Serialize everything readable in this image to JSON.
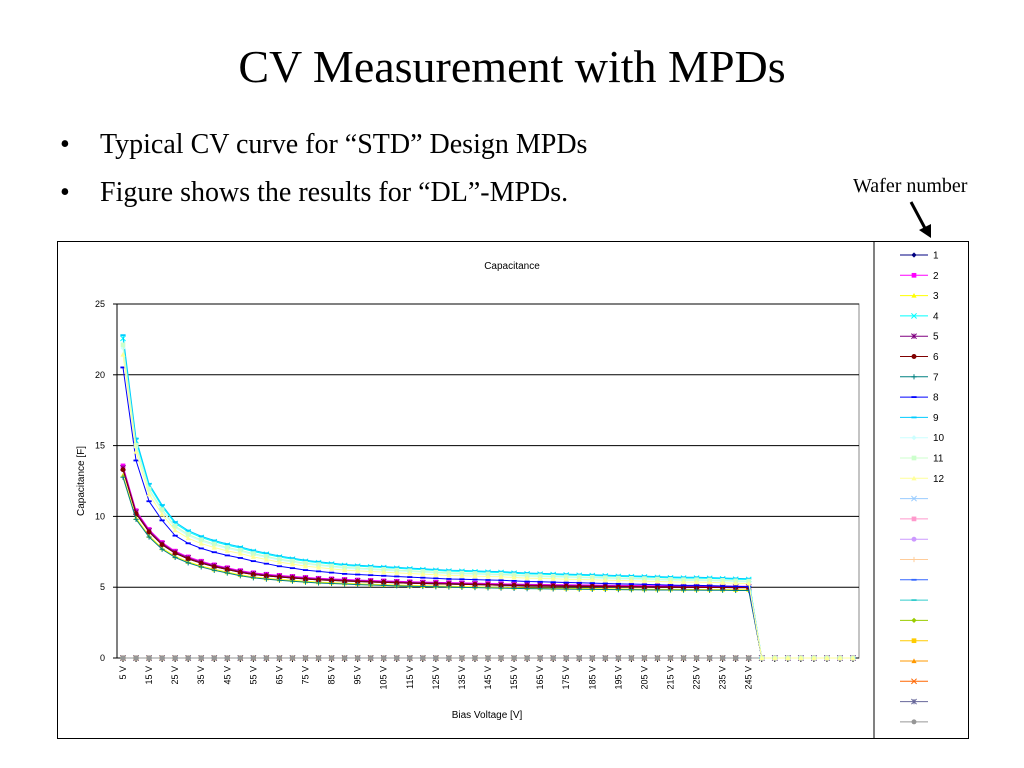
{
  "slide": {
    "title": "CV Measurement with MPDs",
    "bullets": [
      "Typical CV curve for “STD” Design MPDs",
      "Figure shows the results for “DL”-MPDs."
    ],
    "annotation": "Wafer number"
  },
  "chart_data": {
    "type": "line",
    "title": "Capacitance",
    "xlabel": "Bias Voltage [V]",
    "ylabel": "Capacitance [F]",
    "ylim": [
      0,
      25
    ],
    "yticks": [
      0,
      5,
      10,
      15,
      20,
      25
    ],
    "grid": "horizontal",
    "legend_position": "right",
    "x": [
      5,
      10,
      15,
      20,
      25,
      30,
      35,
      40,
      45,
      50,
      55,
      60,
      65,
      70,
      75,
      80,
      85,
      90,
      95,
      100,
      105,
      110,
      115,
      120,
      125,
      130,
      135,
      140,
      145,
      150,
      155,
      160,
      165,
      170,
      175,
      180,
      185,
      190,
      195,
      200,
      205,
      210,
      215,
      220,
      225,
      230,
      235,
      240,
      245,
      250,
      255,
      260,
      265,
      270,
      275,
      280,
      285
    ],
    "x_tick_labels": [
      "5 V",
      "15 V",
      "25 V",
      "35 V",
      "45 V",
      "55 V",
      "65 V",
      "75 V",
      "85 V",
      "95 V",
      "105 V",
      "115 V",
      "125 V",
      "135 V",
      "145 V",
      "155 V",
      "165 V",
      "175 V",
      "185 V",
      "195 V",
      "205 V",
      "215 V",
      "225 V",
      "235 V",
      "245 V"
    ],
    "x_tick_values": [
      5,
      15,
      25,
      35,
      45,
      55,
      65,
      75,
      85,
      95,
      105,
      115,
      125,
      135,
      145,
      155,
      165,
      175,
      185,
      195,
      205,
      215,
      225,
      235,
      245
    ],
    "curve_profiles": {
      "high": [
        22.8,
        15.5,
        12.3,
        10.8,
        9.6,
        9.0,
        8.6,
        8.3,
        8.05,
        7.85,
        7.6,
        7.4,
        7.2,
        7.05,
        6.9,
        6.8,
        6.7,
        6.6,
        6.55,
        6.5,
        6.45,
        6.4,
        6.35,
        6.3,
        6.25,
        6.2,
        6.18,
        6.15,
        6.12,
        6.1,
        6.05,
        6.0,
        5.98,
        5.95,
        5.92,
        5.9,
        5.88,
        5.85,
        5.82,
        5.8,
        5.78,
        5.75,
        5.72,
        5.7,
        5.7,
        5.68,
        5.65,
        5.62,
        5.6,
        0,
        0,
        0,
        0,
        0,
        0,
        0,
        0
      ],
      "low": [
        13.3,
        10.2,
        8.9,
        8.0,
        7.4,
        7.0,
        6.7,
        6.45,
        6.25,
        6.05,
        5.9,
        5.8,
        5.72,
        5.65,
        5.58,
        5.52,
        5.48,
        5.44,
        5.4,
        5.37,
        5.34,
        5.31,
        5.28,
        5.26,
        5.24,
        5.22,
        5.2,
        5.18,
        5.16,
        5.14,
        5.12,
        5.1,
        5.09,
        5.08,
        5.07,
        5.06,
        5.05,
        5.04,
        5.03,
        5.02,
        5.01,
        5.0,
        5.0,
        4.99,
        4.99,
        4.98,
        4.98,
        4.97,
        4.97,
        0,
        0,
        0,
        0,
        0,
        0,
        0,
        0
      ],
      "zero": [
        0,
        0,
        0,
        0,
        0,
        0,
        0,
        0,
        0,
        0,
        0,
        0,
        0,
        0,
        0,
        0,
        0,
        0,
        0,
        0,
        0,
        0,
        0,
        0,
        0,
        0,
        0,
        0,
        0,
        0,
        0,
        0,
        0,
        0,
        0,
        0,
        0,
        0,
        0,
        0,
        0,
        0,
        0,
        0,
        0,
        0,
        0,
        0,
        0,
        0,
        0,
        0,
        0,
        0,
        0,
        0,
        0
      ]
    },
    "series": [
      {
        "name": "1",
        "color": "#000080",
        "marker": "diamond",
        "profile": "low",
        "scale": 1.0
      },
      {
        "name": "2",
        "color": "#ff00ff",
        "marker": "square",
        "profile": "low",
        "scale": 1.02
      },
      {
        "name": "3",
        "color": "#ffff00",
        "marker": "triangle",
        "profile": "low",
        "scale": 0.97
      },
      {
        "name": "4",
        "color": "#00ffff",
        "marker": "x",
        "profile": "high",
        "scale": 0.99
      },
      {
        "name": "5",
        "color": "#800080",
        "marker": "star",
        "profile": "low",
        "scale": 1.01
      },
      {
        "name": "6",
        "color": "#800000",
        "marker": "circle",
        "profile": "low",
        "scale": 1.0
      },
      {
        "name": "7",
        "color": "#008080",
        "marker": "plus",
        "profile": "low",
        "scale": 0.96
      },
      {
        "name": "8",
        "color": "#0000ff",
        "marker": "dash",
        "profile": "high",
        "scale": 0.9
      },
      {
        "name": "9",
        "color": "#00ccff",
        "marker": "dash",
        "profile": "high",
        "scale": 1.0
      },
      {
        "name": "10",
        "color": "#ccffff",
        "marker": "diamond",
        "profile": "high",
        "scale": 0.96
      },
      {
        "name": "11",
        "color": "#ccffcc",
        "marker": "square",
        "profile": "high",
        "scale": 0.97
      },
      {
        "name": "12",
        "color": "#ffff99",
        "marker": "triangle",
        "profile": "high",
        "scale": 0.94
      },
      {
        "name": "",
        "color": "#99ccff",
        "marker": "x",
        "profile": "zero",
        "scale": 1
      },
      {
        "name": "",
        "color": "#ff99cc",
        "marker": "square",
        "profile": "zero",
        "scale": 1
      },
      {
        "name": "",
        "color": "#cc99ff",
        "marker": "circle",
        "profile": "zero",
        "scale": 1
      },
      {
        "name": "",
        "color": "#ffcc99",
        "marker": "plus",
        "profile": "zero",
        "scale": 1
      },
      {
        "name": "",
        "color": "#3366ff",
        "marker": "dash",
        "profile": "zero",
        "scale": 1
      },
      {
        "name": "",
        "color": "#33cccc",
        "marker": "dash",
        "profile": "zero",
        "scale": 1
      },
      {
        "name": "",
        "color": "#99cc00",
        "marker": "diamond",
        "profile": "zero",
        "scale": 1
      },
      {
        "name": "",
        "color": "#ffcc00",
        "marker": "square",
        "profile": "zero",
        "scale": 1
      },
      {
        "name": "",
        "color": "#ff9900",
        "marker": "triangle",
        "profile": "zero",
        "scale": 1
      },
      {
        "name": "",
        "color": "#ff6600",
        "marker": "x",
        "profile": "zero",
        "scale": 1
      },
      {
        "name": "",
        "color": "#666699",
        "marker": "star",
        "profile": "zero",
        "scale": 1
      },
      {
        "name": "",
        "color": "#969696",
        "marker": "circle",
        "profile": "zero",
        "scale": 1
      }
    ]
  }
}
